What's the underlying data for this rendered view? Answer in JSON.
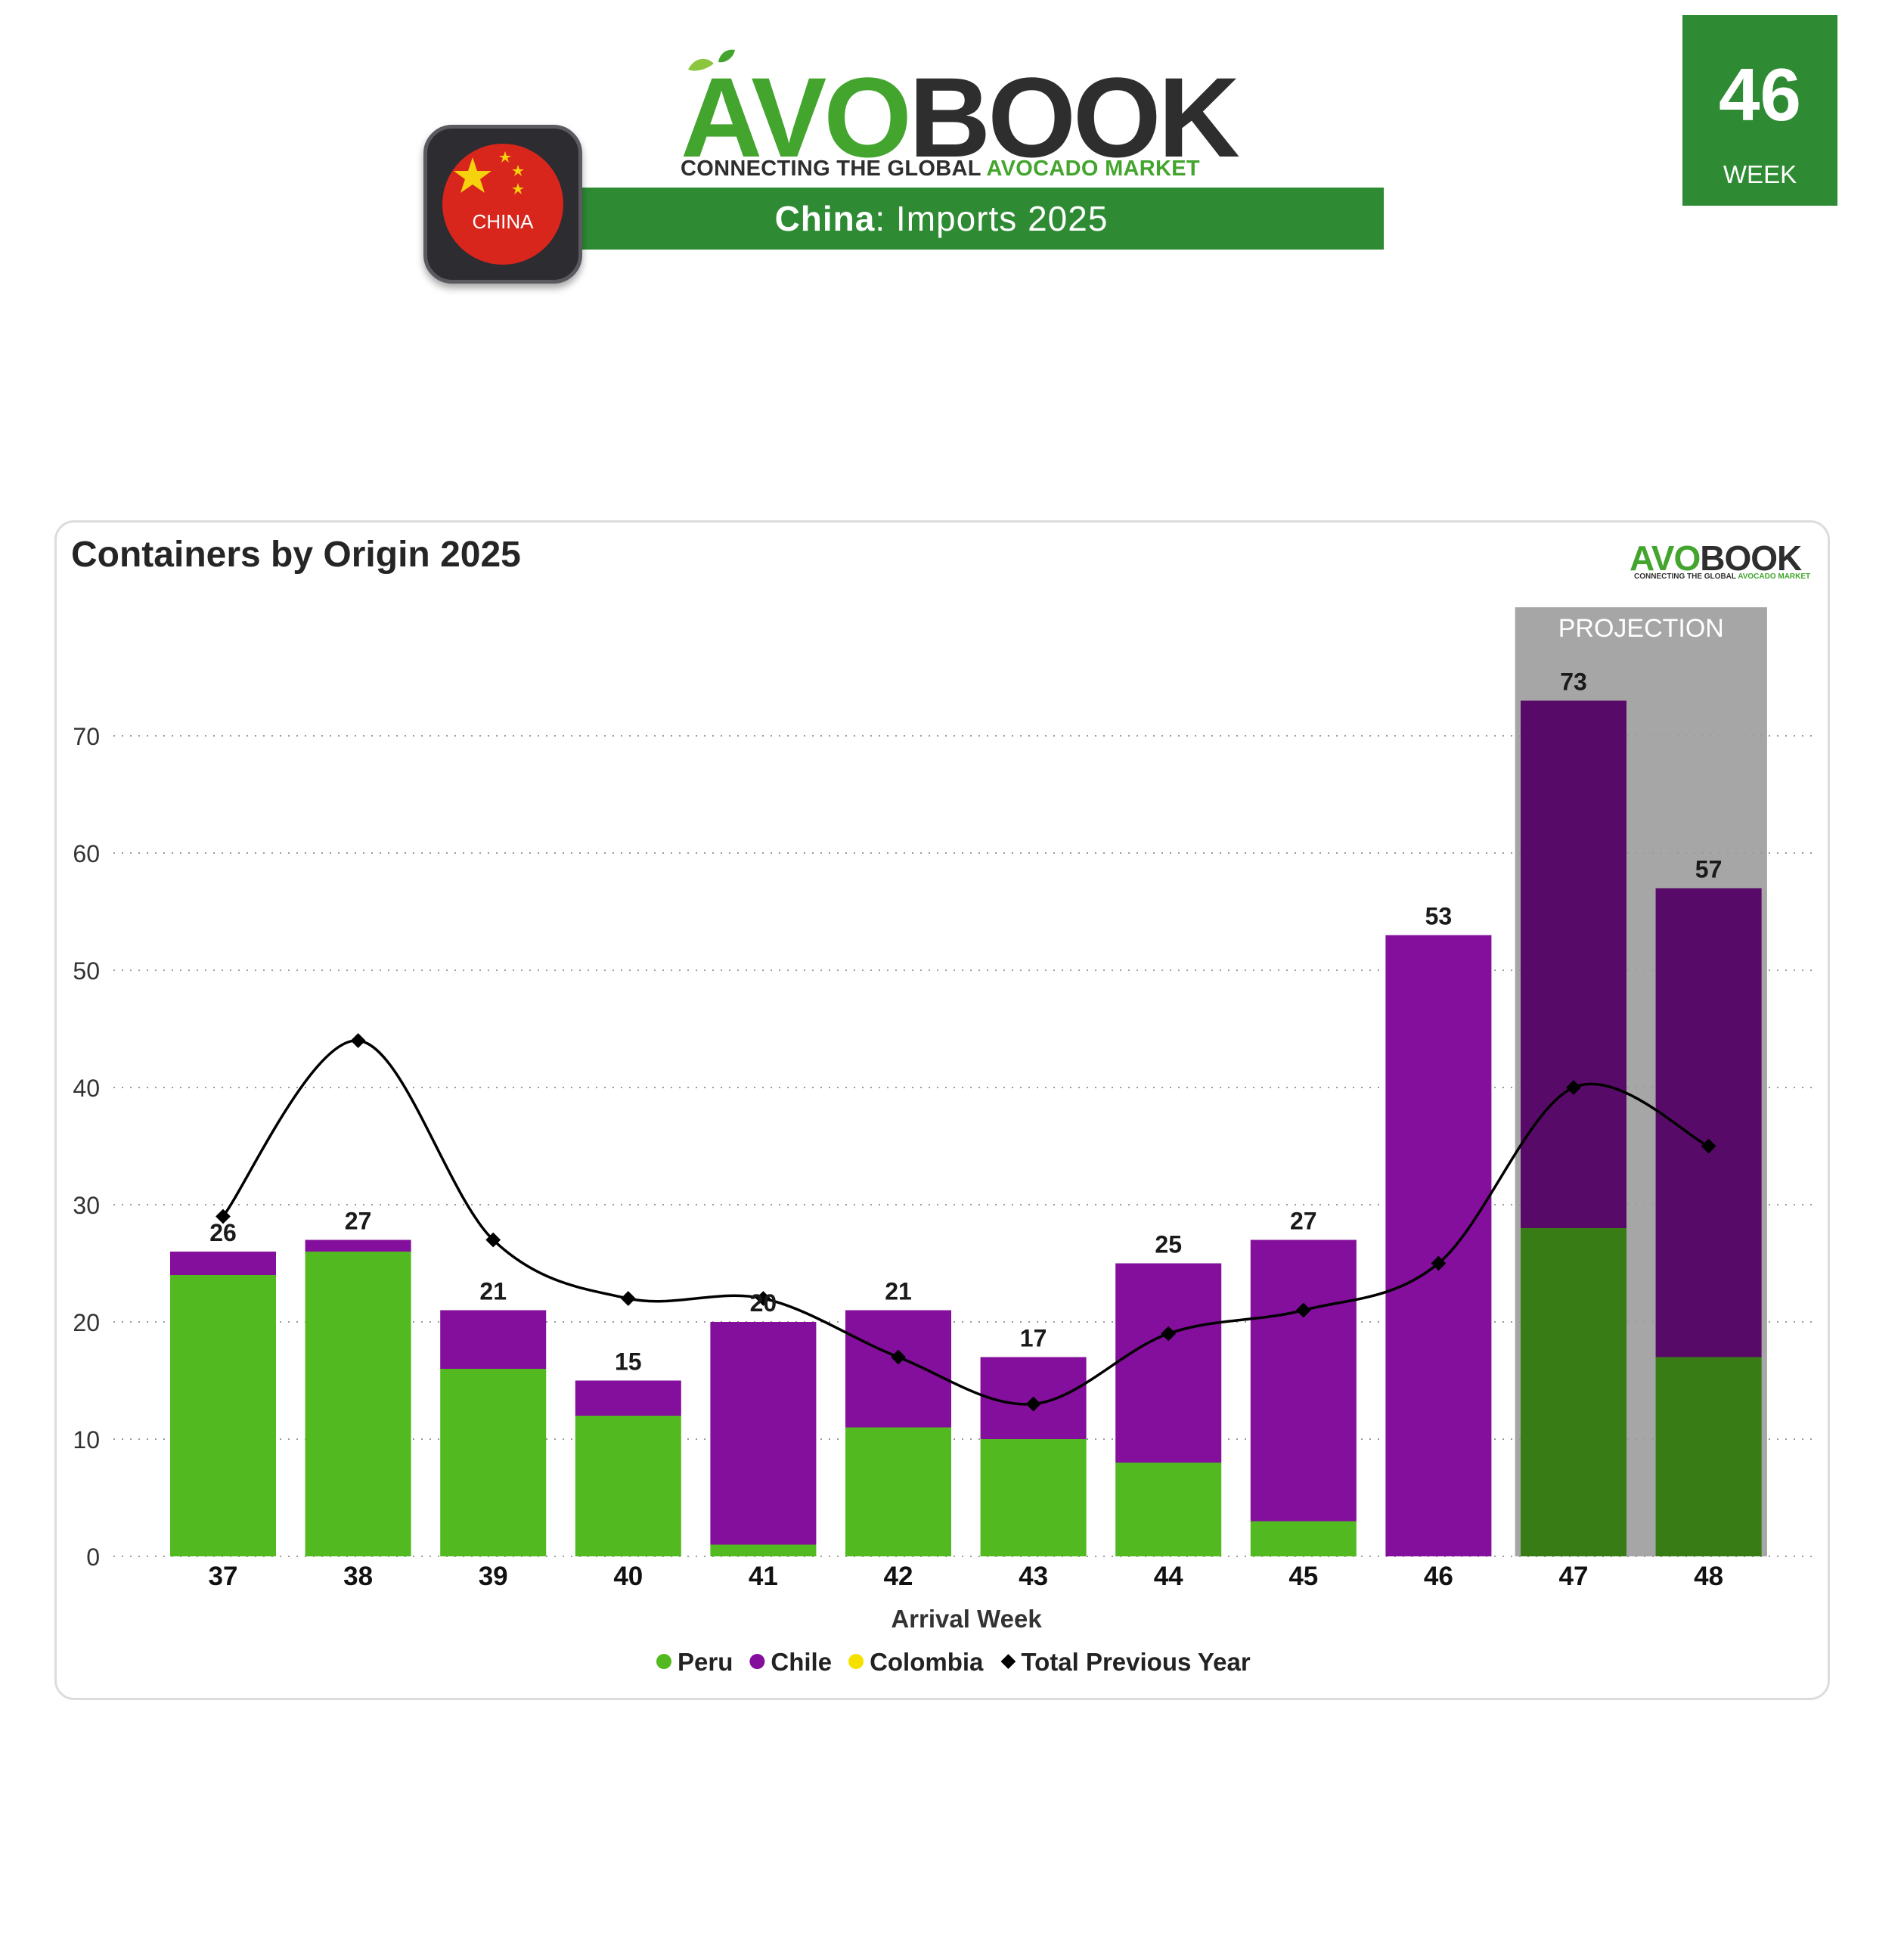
{
  "header": {
    "brand_part1": "AVO",
    "brand_part2": "BOOK",
    "tagline_part1": "CONNECTING THE GLOBAL ",
    "tagline_part2": "AVOCADO MARKET",
    "title_country": "China",
    "title_rest": ": Imports 2025",
    "flag_label": "CHINA",
    "week_number": "46",
    "week_label": "WEEK"
  },
  "colors": {
    "peru": "#52b920",
    "chile": "#830f9c",
    "colombia": "#f5e100",
    "total_previous_year": "#000000",
    "brand_green": "#2e8b33",
    "projection_shade": "#a6a6a6"
  },
  "chart_data": {
    "type": "bar",
    "stacked": true,
    "title": "Containers by Origin 2025",
    "xlabel": "Arrival Week",
    "ylabel": "",
    "ylim": [
      0,
      80
    ],
    "yticks": [
      0,
      10,
      20,
      30,
      40,
      50,
      60,
      70
    ],
    "grid": "horizontal dotted",
    "legend_position": "bottom",
    "categories": [
      "37",
      "38",
      "39",
      "40",
      "41",
      "42",
      "43",
      "44",
      "45",
      "46",
      "47",
      "48"
    ],
    "series": [
      {
        "name": "Peru",
        "type": "bar",
        "values": [
          24,
          26,
          16,
          12,
          1,
          11,
          10,
          8,
          3,
          0,
          28,
          17
        ]
      },
      {
        "name": "Chile",
        "type": "bar",
        "values": [
          2,
          1,
          5,
          3,
          19,
          10,
          7,
          17,
          24,
          53,
          45,
          40
        ]
      },
      {
        "name": "Colombia",
        "type": "bar",
        "values": [
          0,
          0,
          0,
          0,
          0,
          0,
          0,
          0,
          0,
          0,
          0,
          0
        ]
      },
      {
        "name": "Total Previous Year",
        "type": "line",
        "values": [
          29,
          44,
          27,
          22,
          22,
          17,
          13,
          19,
          21,
          25,
          40,
          35
        ]
      }
    ],
    "totals": [
      26,
      27,
      21,
      15,
      20,
      21,
      17,
      25,
      27,
      53,
      73,
      57
    ],
    "projection": {
      "label": "PROJECTION",
      "categories": [
        "47",
        "48"
      ]
    }
  }
}
